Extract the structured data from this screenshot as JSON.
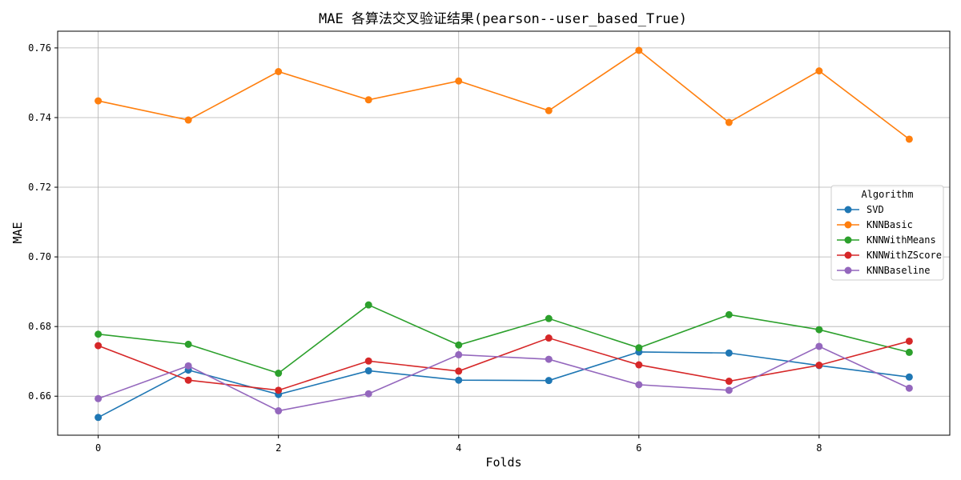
{
  "chart_data": {
    "type": "line",
    "title": "MAE 各算法交叉验证结果(pearson--user_based_True)",
    "xlabel": "Folds",
    "ylabel": "MAE",
    "x": [
      0,
      1,
      2,
      3,
      4,
      5,
      6,
      7,
      8,
      9
    ],
    "xlim": [
      -0.45,
      9.45
    ],
    "ylim": [
      0.6488,
      0.7648
    ],
    "xticks": [
      0,
      2,
      4,
      6,
      8
    ],
    "yticks": [
      0.66,
      0.68,
      0.7,
      0.72,
      0.74,
      0.76
    ],
    "ytick_labels": [
      "0.66",
      "0.68",
      "0.70",
      "0.72",
      "0.74",
      "0.76"
    ],
    "grid": true,
    "legend": {
      "title": "Algorithm",
      "placement": "center-right"
    },
    "series": [
      {
        "name": "SVD",
        "color": "#1f77b4",
        "values": [
          0.6539,
          0.6675,
          0.6605,
          0.6673,
          0.6646,
          0.6645,
          0.6727,
          0.6724,
          0.6688,
          0.6655
        ]
      },
      {
        "name": "KNNBasic",
        "color": "#ff7f0e",
        "values": [
          0.7448,
          0.7393,
          0.7532,
          0.7451,
          0.7505,
          0.742,
          0.7593,
          0.7386,
          0.7534,
          0.7338
        ]
      },
      {
        "name": "KNNWithMeans",
        "color": "#2ca02c",
        "values": [
          0.6778,
          0.6749,
          0.6666,
          0.6862,
          0.6747,
          0.6823,
          0.6739,
          0.6834,
          0.6791,
          0.6726
        ]
      },
      {
        "name": "KNNWithZScore",
        "color": "#d62728",
        "values": [
          0.6745,
          0.6646,
          0.6617,
          0.6701,
          0.6672,
          0.6767,
          0.669,
          0.6643,
          0.6689,
          0.6758
        ]
      },
      {
        "name": "KNNBaseline",
        "color": "#9467bd",
        "values": [
          0.6593,
          0.6687,
          0.6558,
          0.6607,
          0.6719,
          0.6706,
          0.6633,
          0.6617,
          0.6743,
          0.6623
        ]
      }
    ]
  }
}
